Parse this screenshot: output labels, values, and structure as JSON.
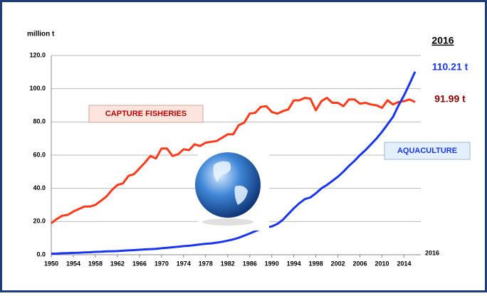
{
  "chart_data": {
    "type": "line",
    "y_label": "million t",
    "x": [
      1950,
      1951,
      1952,
      1953,
      1954,
      1955,
      1956,
      1957,
      1958,
      1959,
      1960,
      1961,
      1962,
      1963,
      1964,
      1965,
      1966,
      1967,
      1968,
      1969,
      1970,
      1971,
      1972,
      1973,
      1974,
      1975,
      1976,
      1977,
      1978,
      1979,
      1980,
      1981,
      1982,
      1983,
      1984,
      1985,
      1986,
      1987,
      1988,
      1989,
      1990,
      1991,
      1992,
      1993,
      1994,
      1995,
      1996,
      1997,
      1998,
      1999,
      2000,
      2001,
      2002,
      2003,
      2004,
      2005,
      2006,
      2007,
      2008,
      2009,
      2010,
      2011,
      2012,
      2013,
      2014,
      2015,
      2016
    ],
    "series": [
      {
        "name": "CAPTURE FISHERIES",
        "color": "#ff3a1a",
        "values": [
          19,
          21.5,
          23.5,
          24,
          26,
          27.5,
          29,
          29,
          30,
          32.5,
          35,
          39,
          42,
          43,
          47.5,
          48.5,
          52,
          55.5,
          59.5,
          58,
          64,
          64,
          59.5,
          60.5,
          63.5,
          63,
          66.5,
          65.5,
          67.5,
          68,
          68.5,
          70.5,
          72.5,
          72.5,
          78,
          79.5,
          85,
          85.5,
          89,
          89.5,
          86,
          85,
          86.5,
          87.5,
          93,
          93,
          94.5,
          94,
          87,
          92.5,
          94.5,
          91.5,
          91.5,
          89.5,
          93.5,
          93.5,
          91,
          91.5,
          90.5,
          90,
          88.5,
          93,
          90.5,
          92,
          92.5,
          93.5,
          91.99
        ]
      },
      {
        "name": "AQUACULTURE",
        "color": "#1a35f0",
        "values": [
          0.6,
          0.7,
          0.9,
          1,
          1.1,
          1.2,
          1.4,
          1.5,
          1.7,
          1.8,
          2,
          2.1,
          2.2,
          2.4,
          2.6,
          2.8,
          3,
          3.2,
          3.4,
          3.5,
          3.9,
          4.2,
          4.5,
          4.8,
          5.2,
          5.4,
          5.8,
          6.2,
          6.6,
          6.8,
          7.3,
          7.8,
          8.5,
          9.2,
          10.2,
          11.5,
          12.8,
          14.2,
          15.5,
          16.5,
          17,
          18.5,
          21,
          24.5,
          28,
          31,
          33.5,
          34.5,
          37,
          40,
          42,
          44.5,
          47,
          50,
          53.5,
          56.5,
          60,
          63,
          66.5,
          70,
          74,
          78.5,
          83,
          90,
          96,
          103,
          110.21
        ]
      }
    ],
    "xlim": [
      1950,
      2016
    ],
    "xticks": [
      1950,
      1954,
      1958,
      1962,
      1966,
      1970,
      1974,
      1978,
      1982,
      1986,
      1990,
      1994,
      1998,
      2002,
      2006,
      2010,
      2014
    ],
    "x_end_label": "2016",
    "ylim": [
      0,
      120
    ],
    "yticks": [
      {
        "value": 0,
        "label": "0.0"
      },
      {
        "value": 20,
        "label": "20.0"
      },
      {
        "value": 40,
        "label": "40.0"
      },
      {
        "value": 60,
        "label": "60.0"
      },
      {
        "value": 80,
        "label": "80.0"
      },
      {
        "value": 100,
        "label": "100.0"
      },
      {
        "value": 120,
        "label": "120.0"
      }
    ],
    "grid": true,
    "annotations": {
      "year": "2016",
      "aquaculture_value": "110.21 t",
      "capture_value": "91.99 t"
    }
  }
}
